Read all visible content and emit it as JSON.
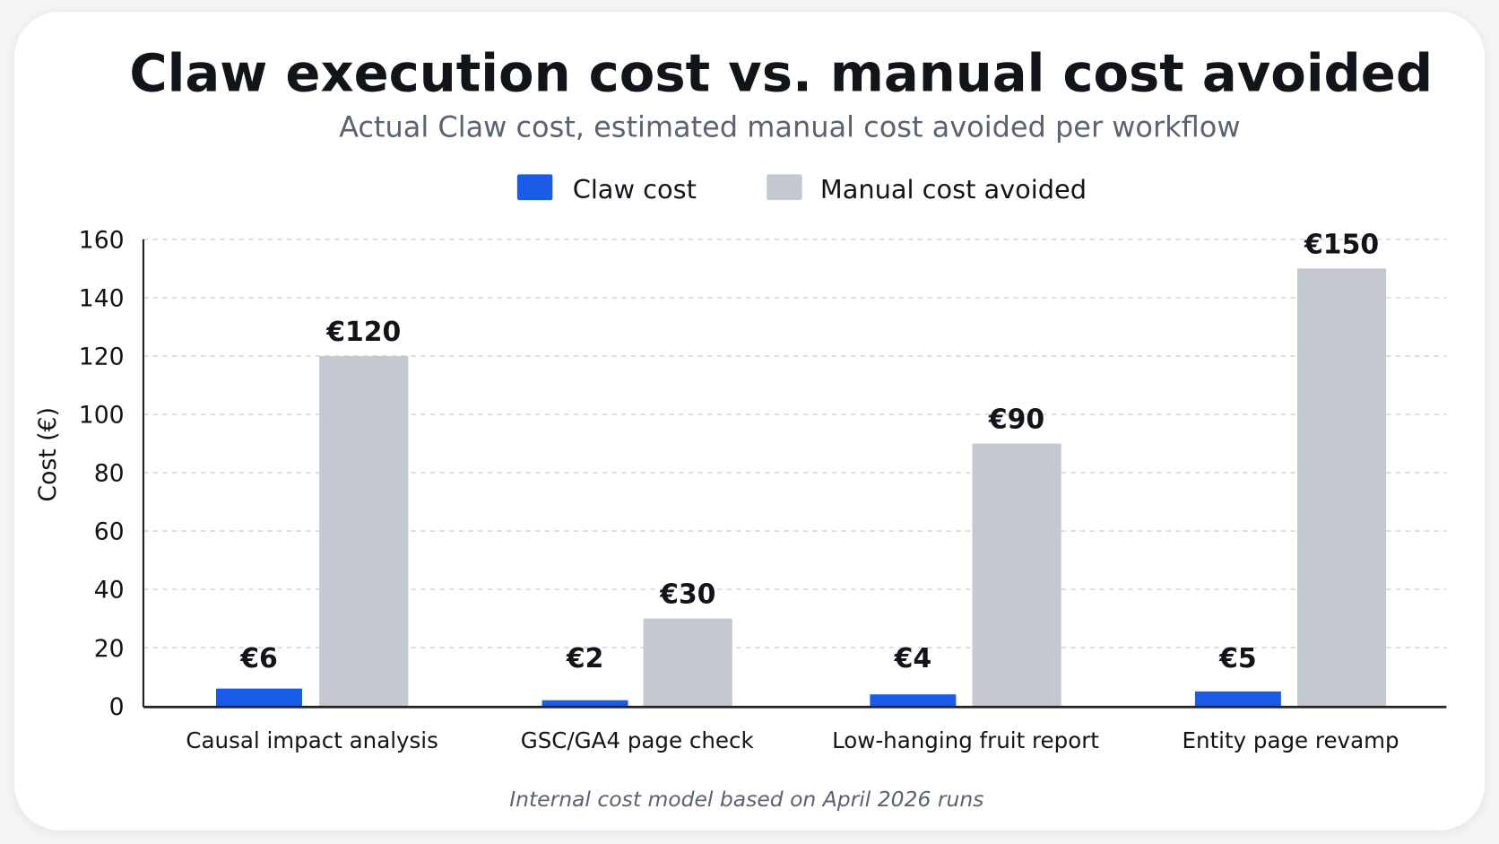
{
  "chart_data": {
    "type": "bar",
    "title": "Claw execution cost vs. manual cost avoided",
    "subtitle": "Actual Claw cost, estimated manual cost avoided per workflow",
    "xlabel": "",
    "ylabel": "Cost (€)",
    "ylim": [
      0,
      160
    ],
    "yticks": [
      0,
      20,
      40,
      60,
      80,
      100,
      120,
      140,
      160
    ],
    "grid": true,
    "legend_position": "top-center",
    "categories": [
      "Causal impact analysis",
      "GSC/GA4 page check",
      "Low-hanging fruit report",
      "Entity page revamp"
    ],
    "series": [
      {
        "name": "Claw cost",
        "color": "#1a5ce8",
        "values": [
          6,
          2,
          4,
          5
        ],
        "labels": [
          "€6",
          "€2",
          "€4",
          "€5"
        ]
      },
      {
        "name": "Manual cost avoided",
        "color": "#c4c8d0",
        "values": [
          120,
          30,
          90,
          150
        ],
        "labels": [
          "€120",
          "€30",
          "€90",
          "€150"
        ]
      }
    ],
    "footnote": "Internal cost model based on April 2026 runs"
  }
}
